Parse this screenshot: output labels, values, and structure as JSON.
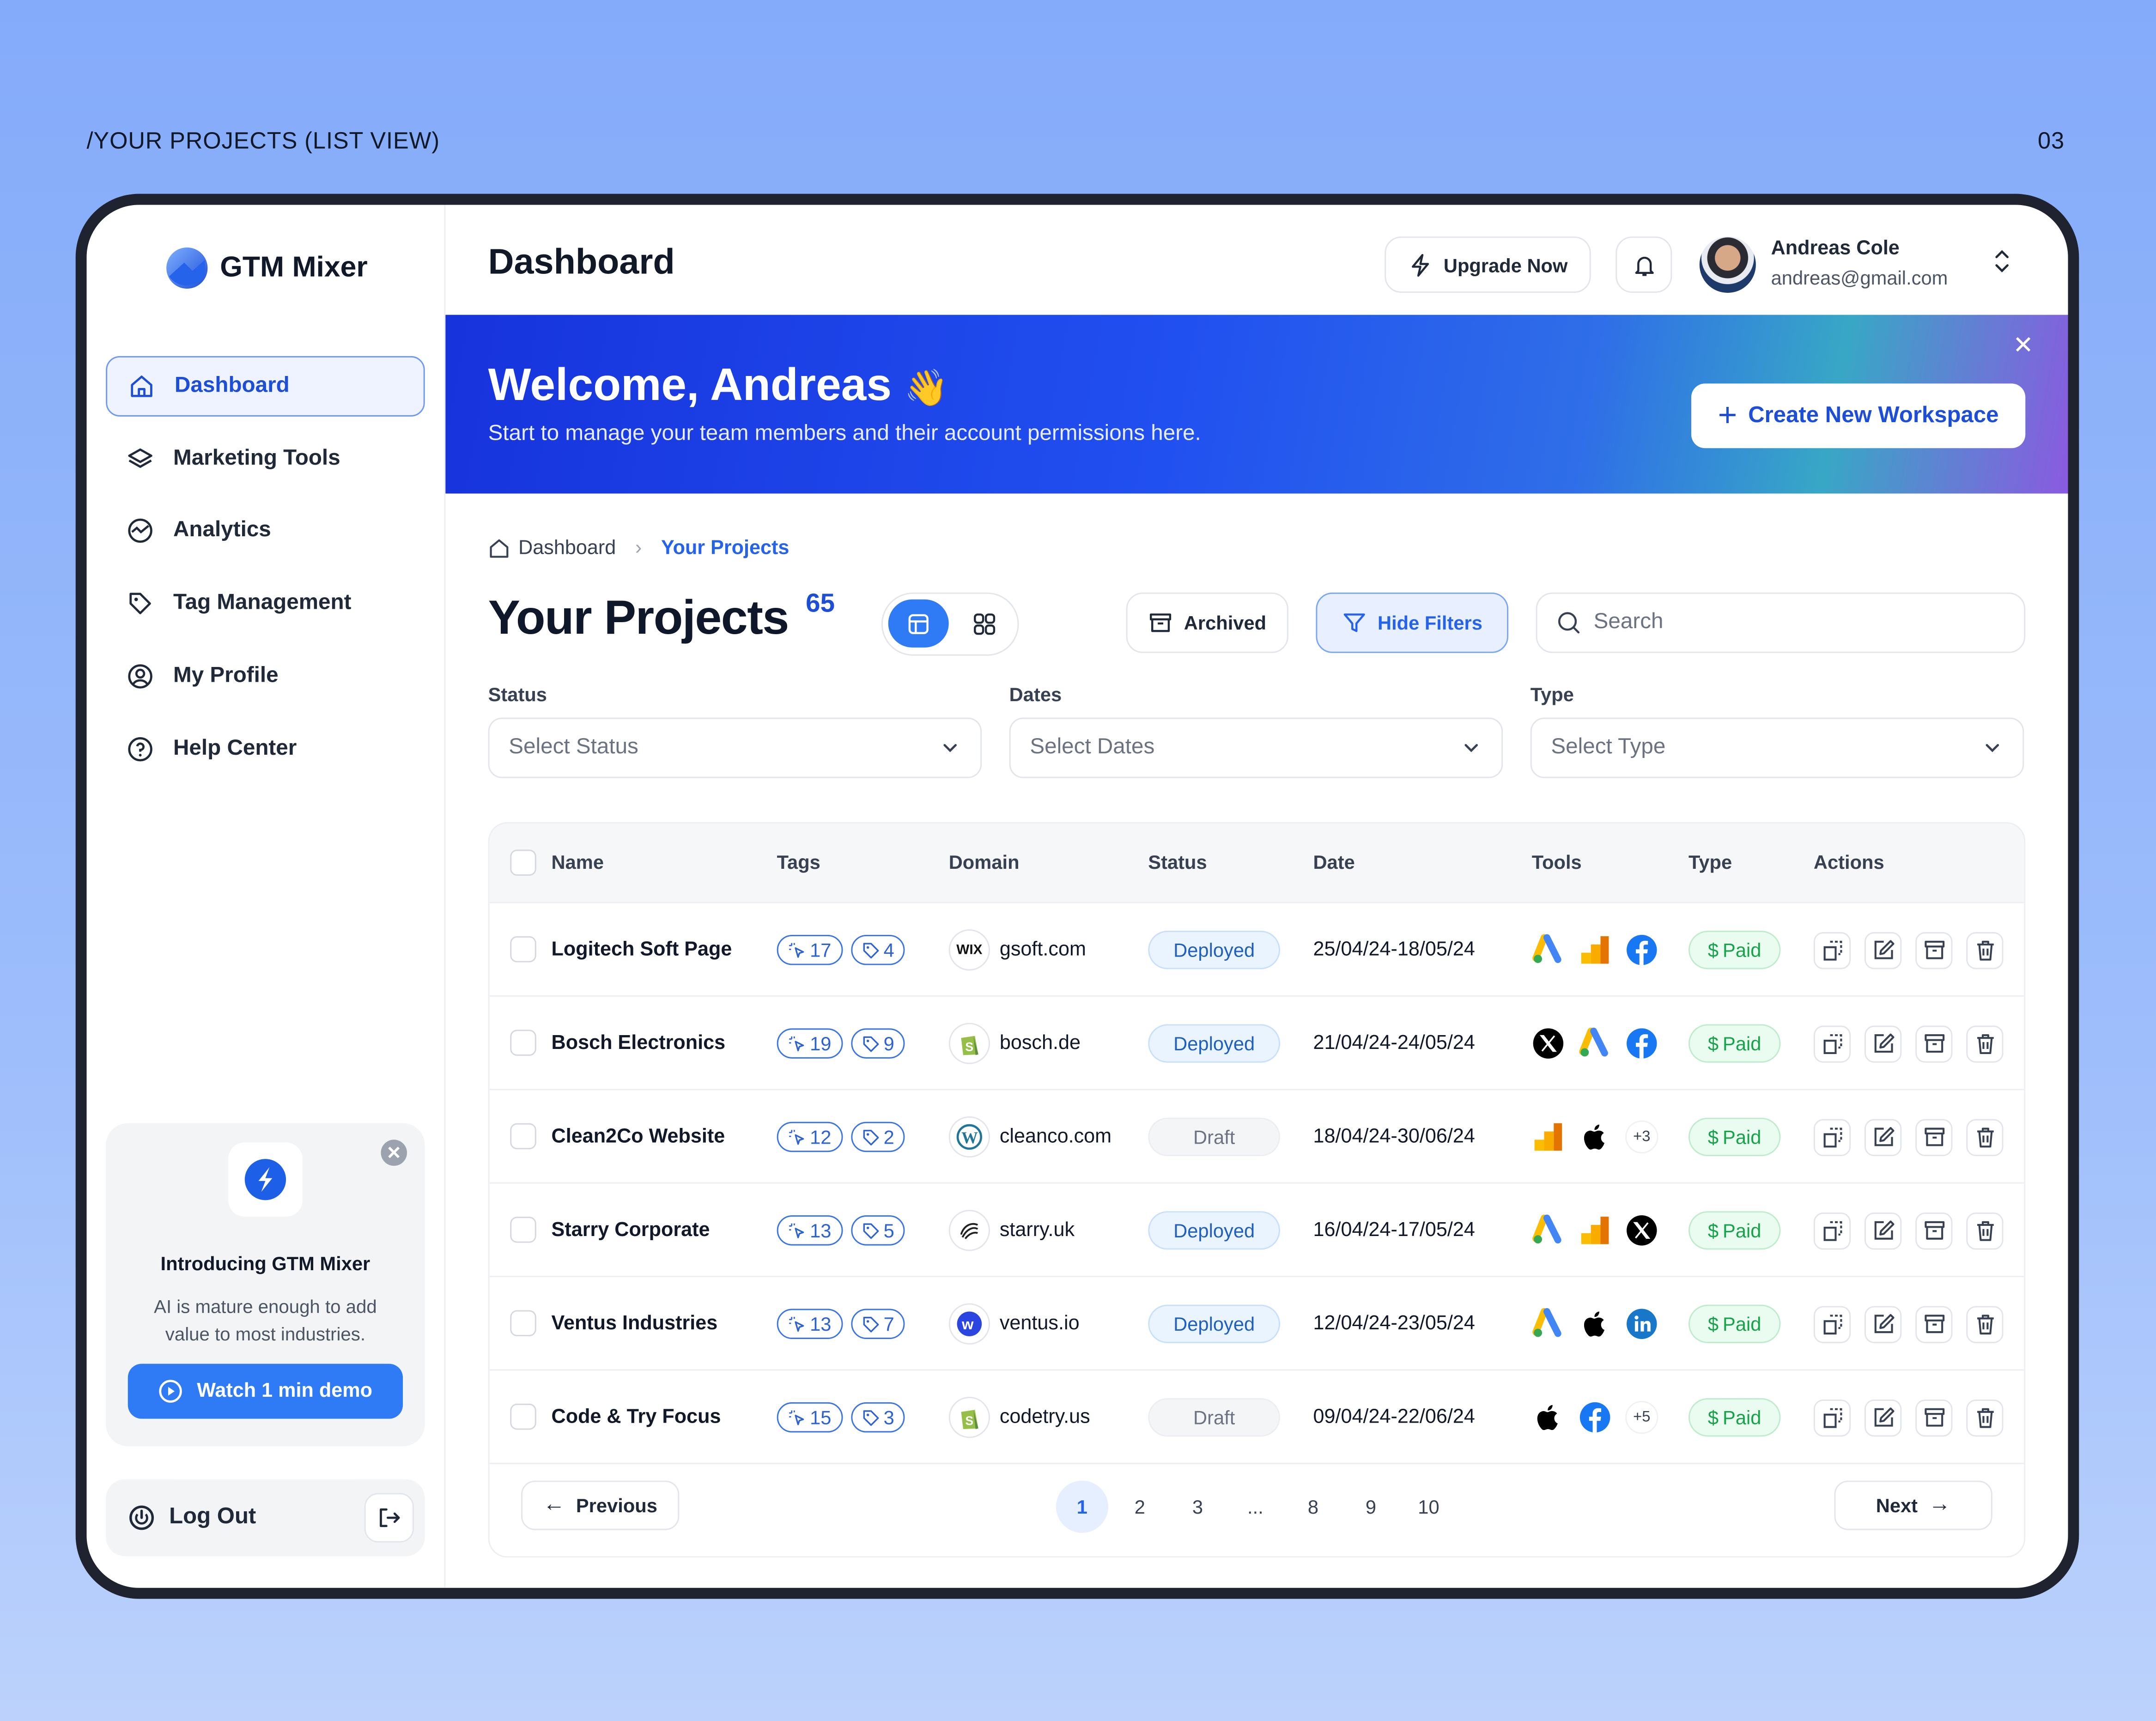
{
  "page_caption": "/YOUR PROJECTS (LIST VIEW)",
  "page_number": "03",
  "app": {
    "name": "GTM Mixer"
  },
  "sidebar": {
    "items": [
      {
        "label": "Dashboard",
        "icon": "home-icon",
        "active": true
      },
      {
        "label": "Marketing Tools",
        "icon": "layers-icon"
      },
      {
        "label": "Analytics",
        "icon": "analytics-icon"
      },
      {
        "label": "Tag Management",
        "icon": "tag-icon"
      },
      {
        "label": "My Profile",
        "icon": "user-circle-icon"
      },
      {
        "label": "Help Center",
        "icon": "help-icon"
      }
    ],
    "promo": {
      "title": "Introducing GTM Mixer",
      "text": "AI is mature enough to add value to most industries.",
      "button": "Watch 1 min demo"
    },
    "logout": "Log Out"
  },
  "header": {
    "title": "Dashboard",
    "upgrade": "Upgrade Now",
    "user": {
      "name": "Andreas Cole",
      "email": "andreas@gmail.com"
    }
  },
  "banner": {
    "title": "Welcome, Andreas",
    "emoji": "👋",
    "subtitle": "Start to manage your team members and their account permissions here.",
    "button": "Create New Workspace"
  },
  "breadcrumb": {
    "home": "Dashboard",
    "current": "Your Projects"
  },
  "projects": {
    "title": "Your Projects",
    "count": "65",
    "archived": "Archived",
    "hide_filters": "Hide Filters",
    "search_placeholder": "Search"
  },
  "filters": [
    {
      "label": "Status",
      "placeholder": "Select Status"
    },
    {
      "label": "Dates",
      "placeholder": "Select Dates"
    },
    {
      "label": "Type",
      "placeholder": "Select Type"
    }
  ],
  "table": {
    "columns": [
      "Name",
      "Tags",
      "Domain",
      "Status",
      "Date",
      "Tools",
      "Type",
      "Actions"
    ],
    "rows": [
      {
        "name": "Logitech Soft Page",
        "triggers": "17",
        "tags": "4",
        "domain": "gsoft.com",
        "domain_icon": "wix",
        "status": "Deployed",
        "date": "25/04/24-18/05/24",
        "tools": [
          "google-ads",
          "google-analytics",
          "facebook"
        ],
        "more": "",
        "type": "Paid"
      },
      {
        "name": "Bosch Electronics",
        "triggers": "19",
        "tags": "9",
        "domain": "bosch.de",
        "domain_icon": "shopify",
        "status": "Deployed",
        "date": "21/04/24-24/05/24",
        "tools": [
          "x",
          "google-ads",
          "facebook"
        ],
        "more": "",
        "type": "Paid"
      },
      {
        "name": "Clean2Co Website",
        "triggers": "12",
        "tags": "2",
        "domain": "cleanco.com",
        "domain_icon": "wordpress",
        "status": "Draft",
        "date": "18/04/24-30/06/24",
        "tools": [
          "google-analytics",
          "apple"
        ],
        "more": "+3",
        "type": "Paid"
      },
      {
        "name": "Starry Corporate",
        "triggers": "13",
        "tags": "5",
        "domain": "starry.uk",
        "domain_icon": "starry",
        "status": "Deployed",
        "date": "16/04/24-17/05/24",
        "tools": [
          "google-ads",
          "google-analytics",
          "x"
        ],
        "more": "",
        "type": "Paid"
      },
      {
        "name": "Ventus Industries",
        "triggers": "13",
        "tags": "7",
        "domain": "ventus.io",
        "domain_icon": "ventus",
        "status": "Deployed",
        "date": "12/04/24-23/05/24",
        "tools": [
          "google-ads",
          "apple",
          "linkedin"
        ],
        "more": "",
        "type": "Paid"
      },
      {
        "name": "Code & Try Focus",
        "triggers": "15",
        "tags": "3",
        "domain": "codetry.us",
        "domain_icon": "shopify",
        "status": "Draft",
        "date": "09/04/24-22/06/24",
        "tools": [
          "apple",
          "facebook"
        ],
        "more": "+5",
        "type": "Paid"
      }
    ]
  },
  "pagination": {
    "previous": "Previous",
    "next": "Next",
    "pages": [
      "1",
      "2",
      "3",
      "...",
      "8",
      "9",
      "10"
    ],
    "current": "1"
  },
  "colors": {
    "primary": "#2f7bf5",
    "banner_start": "#1733dc",
    "paid": "#16a34a",
    "deployed": "#1f5fbf"
  }
}
